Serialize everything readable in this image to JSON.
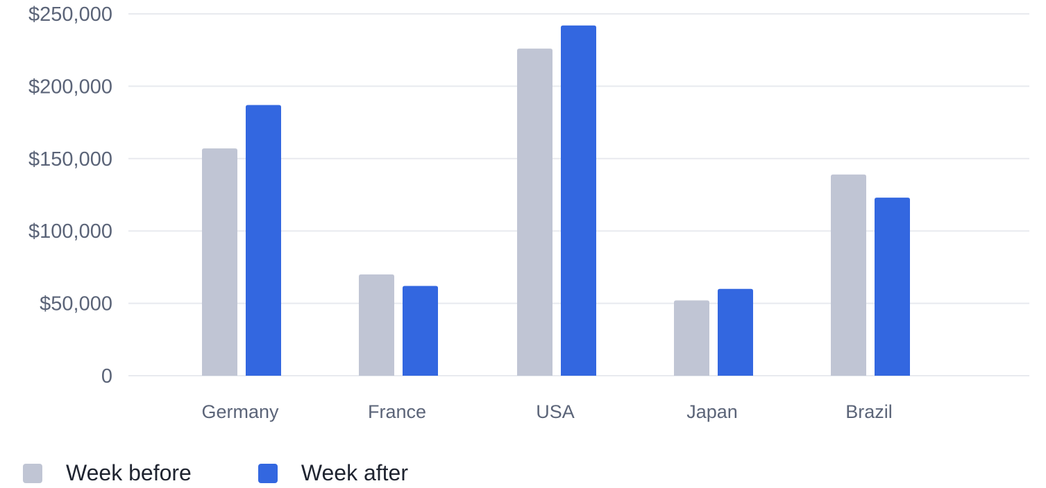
{
  "chart_data": {
    "type": "bar",
    "categories": [
      "Germany",
      "France",
      "USA",
      "Japan",
      "Brazil"
    ],
    "series": [
      {
        "name": "Week before",
        "values": [
          157000,
          70000,
          226000,
          52000,
          139000
        ],
        "color": "#c0c5d4"
      },
      {
        "name": "Week after",
        "values": [
          187000,
          62000,
          242000,
          60000,
          123000
        ],
        "color": "#3367e0"
      }
    ],
    "ylim": [
      0,
      250000
    ],
    "y_ticks": [
      {
        "value": 0,
        "label": "0"
      },
      {
        "value": 50000,
        "label": "$50,000"
      },
      {
        "value": 100000,
        "label": "$100,000"
      },
      {
        "value": 150000,
        "label": "$150,000"
      },
      {
        "value": 200000,
        "label": "$200,000"
      },
      {
        "value": 250000,
        "label": "$250,000"
      }
    ],
    "grid": true,
    "legend_position": "bottom-left",
    "gridline_color": "#e8eaef"
  }
}
